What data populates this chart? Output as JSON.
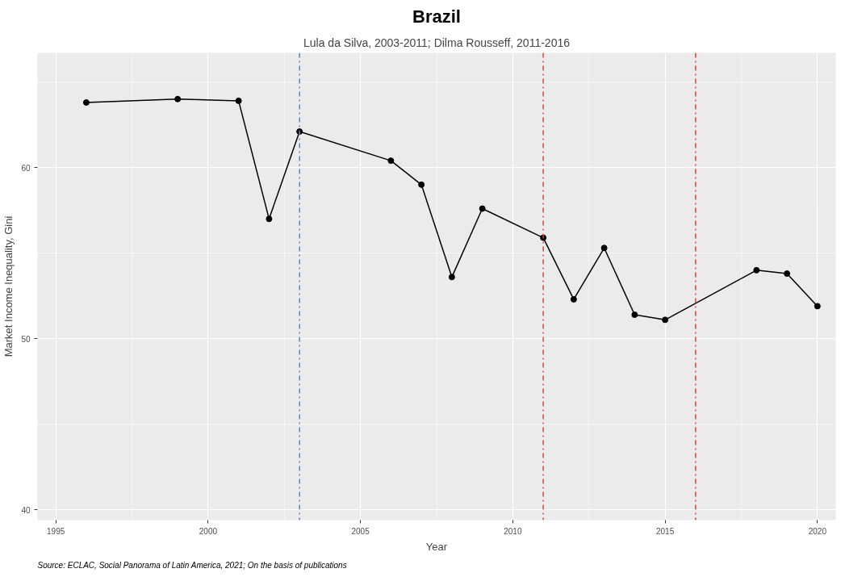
{
  "chart_data": {
    "type": "line",
    "title": "Brazil",
    "subtitle": "Lula da Silva, 2003-2011; Dilma Rousseff, 2011-2016",
    "xlabel": "Year",
    "ylabel": "Market Income Inequality, Gini",
    "annotations": [
      "Source: ECLAC, Social Panorama of Latin America, 2021; On the basis of publications"
    ],
    "x": [
      1996,
      1999,
      2001,
      2002,
      2003,
      2006,
      2007,
      2008,
      2009,
      2011,
      2012,
      2013,
      2014,
      2015,
      2018,
      2019,
      2020
    ],
    "series": [
      {
        "color": "#000000",
        "values": [
          63.8,
          64.0,
          63.9,
          57.0,
          62.1,
          60.4,
          59.0,
          53.6,
          57.6,
          55.9,
          52.3,
          55.3,
          51.4,
          51.1,
          54.0,
          53.8,
          51.9
        ]
      }
    ],
    "xlim": [
      1994.4,
      2020.6
    ],
    "ylim": [
      39.4,
      66.7
    ],
    "xticks": [
      1995,
      2000,
      2005,
      2010,
      2015,
      2020
    ],
    "yticks": [
      40,
      50,
      60
    ],
    "ref_lines": [
      {
        "axis": "x",
        "value": 2003,
        "label": null,
        "color": "#5b7fdb",
        "line_style": "dashdot"
      },
      {
        "axis": "x",
        "value": 2011,
        "label": null,
        "color": "#d9472b",
        "line_style": "dashdot"
      },
      {
        "axis": "x",
        "value": 2016,
        "label": null,
        "color": "#d9472b",
        "line_style": "dashdot"
      }
    ],
    "grid": true,
    "marker": "circle",
    "line_style": "solid"
  }
}
